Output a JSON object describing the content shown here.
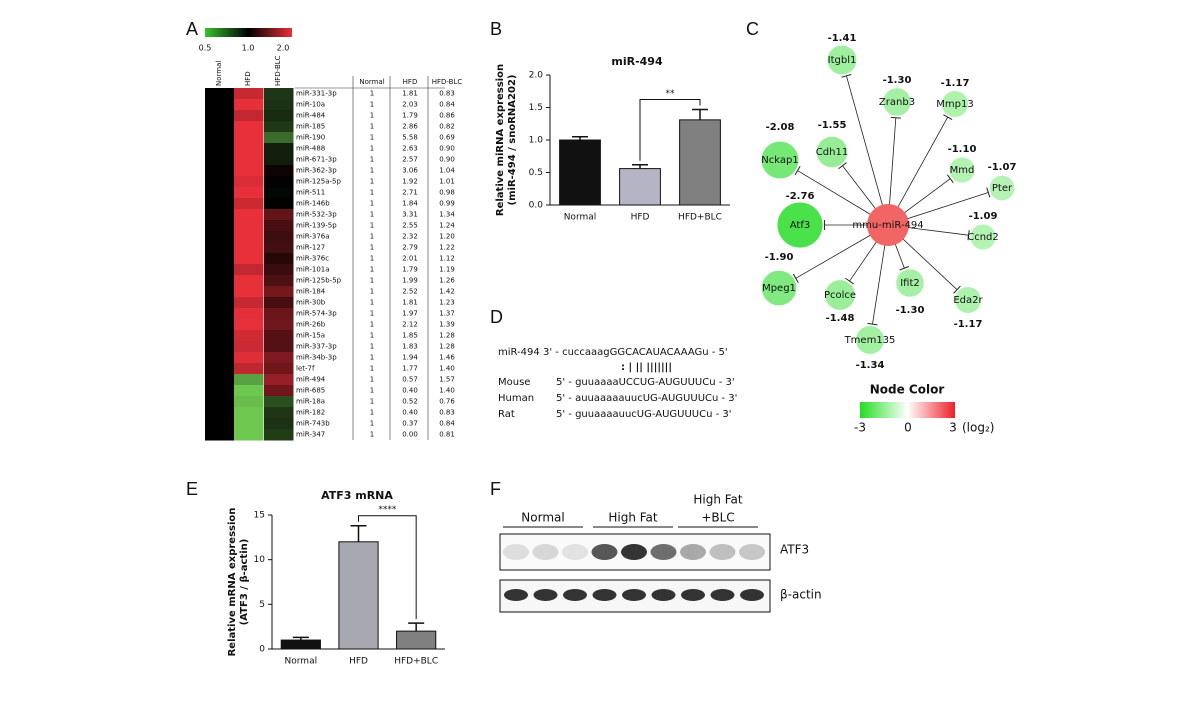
{
  "panel_a": {
    "letter": "A",
    "colorbar_ticks": [
      "0.5",
      "1.0",
      "2.0"
    ],
    "heatmap_columns": [
      "Normal",
      "HFD",
      "HFD-BLC"
    ],
    "table": {
      "header": [
        "Normal",
        "HFD",
        "HFD-BLC"
      ],
      "rows": [
        [
          "miR-331-3p",
          "1",
          "1.81",
          "0.83"
        ],
        [
          "miR-10a",
          "1",
          "2.03",
          "0.84"
        ],
        [
          "miR-484",
          "1",
          "1.79",
          "0.86"
        ],
        [
          "miR-185",
          "1",
          "2.86",
          "0.82"
        ],
        [
          "miR-190",
          "1",
          "5.58",
          "0.69"
        ],
        [
          "miR-488",
          "1",
          "2.63",
          "0.90"
        ],
        [
          "miR-671-3p",
          "1",
          "2.57",
          "0.90"
        ],
        [
          "miR-362-3p",
          "1",
          "3.06",
          "1.04"
        ],
        [
          "miR-125a-5p",
          "1",
          "1.92",
          "1.01"
        ],
        [
          "miR-511",
          "1",
          "2.71",
          "0.98"
        ],
        [
          "miR-146b",
          "1",
          "1.84",
          "0.99"
        ],
        [
          "miR-532-3p",
          "1",
          "3.31",
          "1.34"
        ],
        [
          "miR-139-5p",
          "1",
          "2.55",
          "1.24"
        ],
        [
          "miR-376a",
          "1",
          "2.32",
          "1.20"
        ],
        [
          "miR-127",
          "1",
          "2.79",
          "1.22"
        ],
        [
          "miR-376c",
          "1",
          "2.01",
          "1.12"
        ],
        [
          "miR-101a",
          "1",
          "1.79",
          "1.19"
        ],
        [
          "miR-125b-5p",
          "1",
          "1.99",
          "1.26"
        ],
        [
          "miR-184",
          "1",
          "2.52",
          "1.42"
        ],
        [
          "miR-30b",
          "1",
          "1.81",
          "1.23"
        ],
        [
          "miR-574-3p",
          "1",
          "1.97",
          "1.37"
        ],
        [
          "miR-26b",
          "1",
          "2.12",
          "1.39"
        ],
        [
          "miR-15a",
          "1",
          "1.85",
          "1.28"
        ],
        [
          "miR-337-3p",
          "1",
          "1.83",
          "1.28"
        ],
        [
          "miR-34b-3p",
          "1",
          "1.94",
          "1.46"
        ],
        [
          "let-7f",
          "1",
          "1.77",
          "1.40"
        ],
        [
          "miR-494",
          "1",
          "0.57",
          "1.57"
        ],
        [
          "miR-685",
          "1",
          "0.40",
          "1.40"
        ],
        [
          "miR-18a",
          "1",
          "0.52",
          "0.76"
        ],
        [
          "miR-182",
          "1",
          "0.40",
          "0.83"
        ],
        [
          "miR-743b",
          "1",
          "0.37",
          "0.84"
        ],
        [
          "miR-347",
          "1",
          "0.00",
          "0.81"
        ]
      ]
    }
  },
  "chart_data": [
    {
      "type": "bar",
      "panel_label": "B",
      "title": "miR-494",
      "ylabel": [
        "Relative miRNA expression",
        "(miR-494 / snoRNA202)"
      ],
      "categories": [
        "Normal",
        "HFD",
        "HFD+BLC"
      ],
      "values": [
        1.0,
        0.56,
        1.31
      ],
      "errors": [
        0.05,
        0.06,
        0.16
      ],
      "colors": [
        "#111111",
        "#b4b4c4",
        "#808080"
      ],
      "ylim": [
        0,
        2
      ],
      "yticks": [
        {
          "value": 0,
          "label": "0.0"
        },
        0.5,
        {
          "value": 1,
          "label": "1.0"
        },
        1.5,
        {
          "value": 2,
          "label": "2.0"
        }
      ],
      "significance": "**"
    },
    {
      "type": "bar",
      "panel_label": "E",
      "title": "ATF3 mRNA",
      "ylabel": [
        "Relative mRNA expression",
        "(ATF3 / β-actin)"
      ],
      "categories": [
        "Normal",
        "HFD",
        "HFD+BLC"
      ],
      "values": [
        1.0,
        12.0,
        2.0
      ],
      "errors": [
        0.3,
        1.8,
        0.9
      ],
      "colors": [
        "#111111",
        "#a8a8b0",
        "#808080"
      ],
      "ylim": [
        0,
        15
      ],
      "yticks": [
        0,
        5,
        10,
        15
      ],
      "significance": "****"
    }
  ],
  "panel_c": {
    "letter": "C",
    "center": "mmu-miR-494",
    "nodes": [
      {
        "label": "Itgbl1",
        "value": "-1.41"
      },
      {
        "label": "Zranb3",
        "value": "-1.30"
      },
      {
        "label": "Mmp13",
        "value": "-1.17"
      },
      {
        "label": "Cdh11",
        "value": "-1.55"
      },
      {
        "label": "Nckap1",
        "value": "-2.08"
      },
      {
        "label": "Mmd",
        "value": "-1.10"
      },
      {
        "label": "Pter",
        "value": "-1.07"
      },
      {
        "label": "Atf3",
        "value": "-2.76"
      },
      {
        "label": "Ccnd2",
        "value": "-1.09"
      },
      {
        "label": "Mpeg1",
        "value": "-1.90"
      },
      {
        "label": "Pcolce",
        "value": "-1.48"
      },
      {
        "label": "Ifit2",
        "value": "-1.30"
      },
      {
        "label": "Eda2r",
        "value": "-1.17"
      },
      {
        "label": "Tmem135",
        "value": "-1.34"
      }
    ],
    "legend": {
      "title": "Node Color",
      "ticks": [
        "-3",
        "0",
        "3"
      ],
      "unit": "(log₂)"
    }
  },
  "panel_d": {
    "letter": "D",
    "mirna": {
      "name": "miR-494",
      "sequence": "3' - cuccaaagGGCACAUACAAAGu - 5'"
    },
    "pairing": ":  |  ||  |||||||",
    "targets": [
      {
        "name": "Mouse",
        "sequence": "5' - guuaaaaUCCUG-AUGUUUCu - 3'"
      },
      {
        "name": "Human",
        "sequence": "5' - auuaaaaauucUG-AUGUUUCu - 3'"
      },
      {
        "name": "Rat",
        "sequence": "5' - guuaaaauucUG-AUGUUUCu - 3'"
      }
    ]
  },
  "panel_f": {
    "letter": "F",
    "groups": [
      [
        "Normal"
      ],
      [
        "High Fat"
      ],
      [
        "High Fat",
        "+BLC"
      ]
    ],
    "bands": [
      "ATF3",
      "β-actin"
    ]
  }
}
